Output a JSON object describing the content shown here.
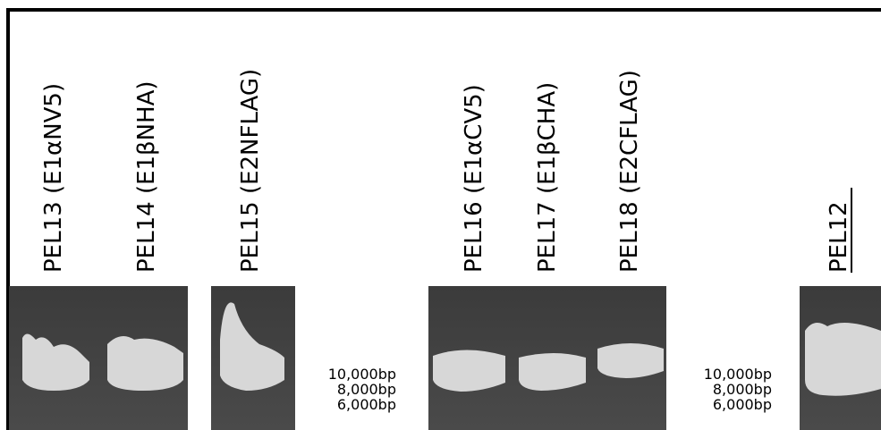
{
  "lanes": [
    {
      "label": "PEL13 (E1αNV5)"
    },
    {
      "label": "PEL14 (E1βNHA)"
    },
    {
      "label": "PEL15 (E2NFLAG)"
    },
    {
      "label": "PEL16 (E1αCV5)"
    },
    {
      "label": "PEL17 (E1βCHA)"
    },
    {
      "label": "PEL18 (E2CFLAG)"
    },
    {
      "label": "PEL12"
    }
  ],
  "markers": [
    [
      "10,000bp",
      "8,000bp",
      "6,000bp"
    ],
    [
      "10,000bp",
      "8,000bp",
      "6,000bp"
    ]
  ]
}
